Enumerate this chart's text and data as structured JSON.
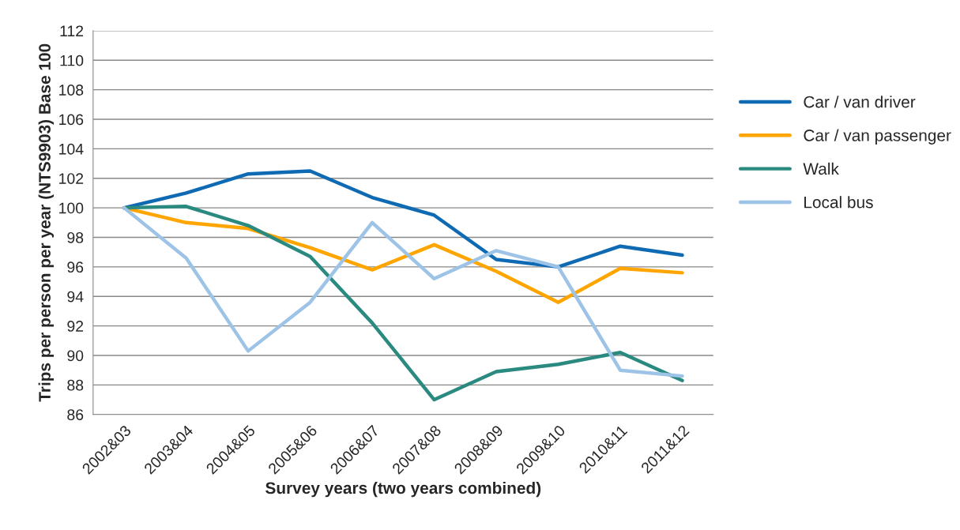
{
  "chart_data": {
    "type": "line",
    "xlabel": "Survey years (two years combined)",
    "ylabel": "Trips per person per year (NTS9903) Base 100",
    "categories": [
      "2002&03",
      "2003&04",
      "2004&05",
      "2005&06",
      "2006&07",
      "2007&08",
      "2008&09",
      "2009&10",
      "2010&11",
      "2011&12"
    ],
    "series": [
      {
        "name": "Car / van driver",
        "color": "#0f6ab4",
        "values": [
          100,
          101.0,
          102.3,
          102.5,
          100.7,
          99.5,
          96.5,
          96.0,
          97.4,
          96.8
        ]
      },
      {
        "name": "Car / van passenger",
        "color": "#ffa500",
        "values": [
          100,
          99.0,
          98.6,
          97.3,
          95.8,
          97.5,
          95.7,
          93.6,
          95.9,
          95.6
        ]
      },
      {
        "name": "Walk",
        "color": "#2a8a80",
        "values": [
          100,
          100.1,
          98.8,
          96.7,
          92.2,
          87.0,
          88.9,
          89.4,
          90.2,
          88.3
        ]
      },
      {
        "name": "Local bus",
        "color": "#9dc3e6",
        "values": [
          100,
          96.6,
          90.3,
          93.6,
          99.0,
          95.2,
          97.1,
          96.0,
          89.0,
          88.6
        ]
      }
    ],
    "ylim": [
      86,
      112
    ],
    "yticks": [
      86,
      88,
      90,
      92,
      94,
      96,
      98,
      100,
      102,
      104,
      106,
      108,
      110,
      112
    ],
    "grid": "y",
    "legend": "right",
    "marker": "none",
    "line_style": "solid"
  }
}
